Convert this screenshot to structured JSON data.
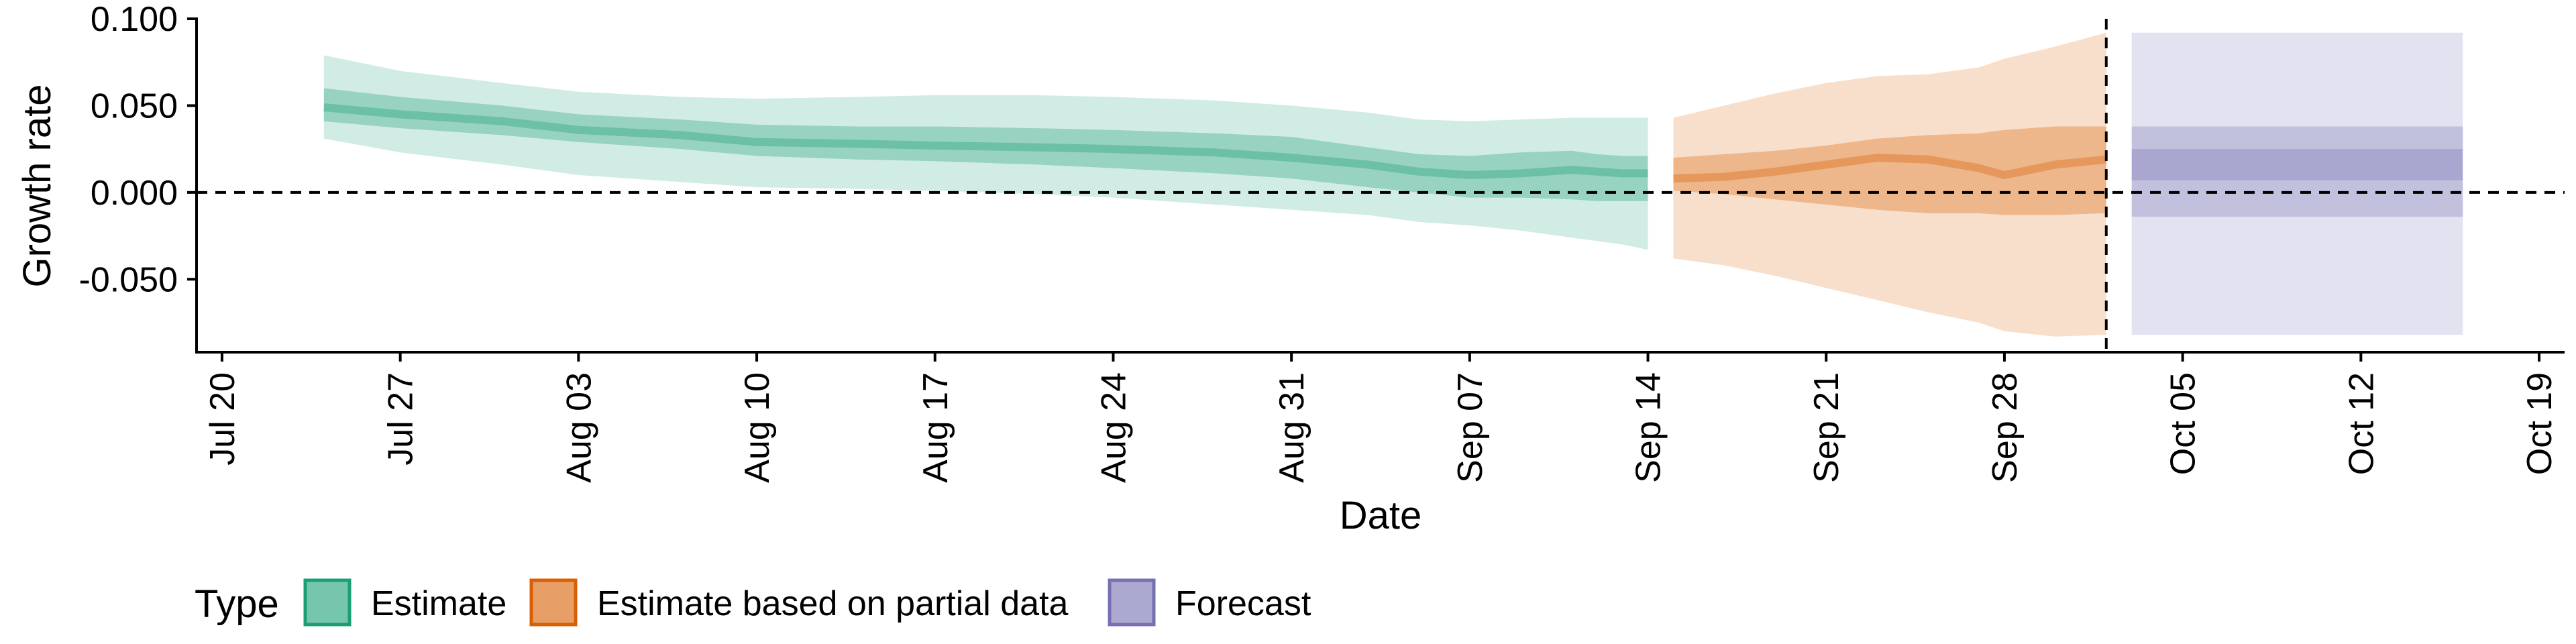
{
  "chart_data": {
    "type": "area",
    "xlabel": "Date",
    "ylabel": "Growth rate",
    "ylim": [
      -0.092,
      0.1
    ],
    "xlim": [
      "2020-07-19",
      "2020-10-20"
    ],
    "y_ticks": [
      "-0.050",
      "0.000",
      "0.050",
      "0.100"
    ],
    "x_ticks": [
      "Jul 20",
      "Jul 27",
      "Aug 03",
      "Aug 10",
      "Aug 17",
      "Aug 24",
      "Aug 31",
      "Sep 07",
      "Sep 14",
      "Sep 21",
      "Sep 28",
      "Oct 05",
      "Oct 12",
      "Oct 19"
    ],
    "x_tick_dates": [
      "2020-07-20",
      "2020-07-27",
      "2020-08-03",
      "2020-08-10",
      "2020-08-17",
      "2020-08-24",
      "2020-08-31",
      "2020-09-07",
      "2020-09-14",
      "2020-09-21",
      "2020-09-28",
      "2020-10-05",
      "2020-10-12",
      "2020-10-19"
    ],
    "grid": false,
    "reference_lines": {
      "horizontal_y": 0,
      "vertical_x": "2020-10-02",
      "style": "dashed"
    },
    "legend": {
      "title": "Type",
      "position": "bottom-left",
      "entries": [
        {
          "label": "Estimate",
          "color": "#1b9e77"
        },
        {
          "label": "Estimate based on partial data",
          "color": "#d95f02"
        },
        {
          "label": "Forecast",
          "color": "#7570b3"
        }
      ]
    },
    "series": [
      {
        "name": "Estimate",
        "color": "#1b9e77",
        "x": [
          "2020-07-24",
          "2020-07-27",
          "2020-07-31",
          "2020-08-03",
          "2020-08-07",
          "2020-08-10",
          "2020-08-14",
          "2020-08-17",
          "2020-08-21",
          "2020-08-24",
          "2020-08-28",
          "2020-08-31",
          "2020-09-03",
          "2020-09-05",
          "2020-09-07",
          "2020-09-09",
          "2020-09-11",
          "2020-09-12",
          "2020-09-13",
          "2020-09-14"
        ],
        "median": [
          0.049,
          0.045,
          0.041,
          0.036,
          0.033,
          0.029,
          0.028,
          0.027,
          0.026,
          0.025,
          0.023,
          0.02,
          0.016,
          0.012,
          0.01,
          0.011,
          0.013,
          0.012,
          0.011,
          0.011
        ],
        "inner_lower": [
          0.041,
          0.037,
          0.033,
          0.029,
          0.025,
          0.021,
          0.019,
          0.018,
          0.016,
          0.014,
          0.011,
          0.008,
          0.003,
          0.0,
          -0.003,
          -0.003,
          -0.004,
          -0.005,
          -0.005,
          -0.005
        ],
        "inner_upper": [
          0.06,
          0.055,
          0.05,
          0.045,
          0.042,
          0.039,
          0.038,
          0.038,
          0.037,
          0.036,
          0.034,
          0.032,
          0.026,
          0.022,
          0.021,
          0.023,
          0.024,
          0.022,
          0.021,
          0.021
        ],
        "outer_lower": [
          0.031,
          0.023,
          0.016,
          0.01,
          0.006,
          0.003,
          0.002,
          0.001,
          -0.001,
          -0.003,
          -0.007,
          -0.01,
          -0.013,
          -0.017,
          -0.019,
          -0.022,
          -0.026,
          -0.028,
          -0.03,
          -0.033
        ],
        "outer_upper": [
          0.079,
          0.07,
          0.063,
          0.058,
          0.055,
          0.054,
          0.055,
          0.056,
          0.056,
          0.055,
          0.053,
          0.05,
          0.046,
          0.042,
          0.041,
          0.042,
          0.043,
          0.043,
          0.043,
          0.043
        ]
      },
      {
        "name": "Estimate based on partial data",
        "color": "#d95f02",
        "x": [
          "2020-09-15",
          "2020-09-17",
          "2020-09-19",
          "2020-09-21",
          "2020-09-23",
          "2020-09-25",
          "2020-09-27",
          "2020-09-28",
          "2020-09-30",
          "2020-10-02"
        ],
        "median": [
          0.008,
          0.009,
          0.012,
          0.016,
          0.02,
          0.019,
          0.014,
          0.01,
          0.016,
          0.019
        ],
        "inner_lower": [
          0.001,
          -0.001,
          -0.004,
          -0.007,
          -0.01,
          -0.012,
          -0.012,
          -0.013,
          -0.013,
          -0.012
        ],
        "inner_upper": [
          0.02,
          0.022,
          0.024,
          0.027,
          0.031,
          0.033,
          0.034,
          0.036,
          0.038,
          0.038
        ],
        "outer_lower": [
          -0.038,
          -0.042,
          -0.048,
          -0.055,
          -0.062,
          -0.069,
          -0.075,
          -0.08,
          -0.083,
          -0.082
        ],
        "outer_upper": [
          0.043,
          0.05,
          0.057,
          0.063,
          0.067,
          0.068,
          0.072,
          0.077,
          0.084,
          0.092
        ]
      },
      {
        "name": "Forecast",
        "color": "#7570b3",
        "x": [
          "2020-10-03",
          "2020-10-16"
        ],
        "median": [
          0.016,
          0.016
        ],
        "inner_lower": [
          0.007,
          0.007
        ],
        "inner_upper": [
          0.025,
          0.025
        ],
        "outer_lower": [
          -0.082,
          -0.082
        ],
        "outer_upper": [
          0.092,
          0.092
        ],
        "mid_lower": [
          -0.014,
          -0.014
        ],
        "mid_upper": [
          0.038,
          0.038
        ]
      }
    ]
  }
}
